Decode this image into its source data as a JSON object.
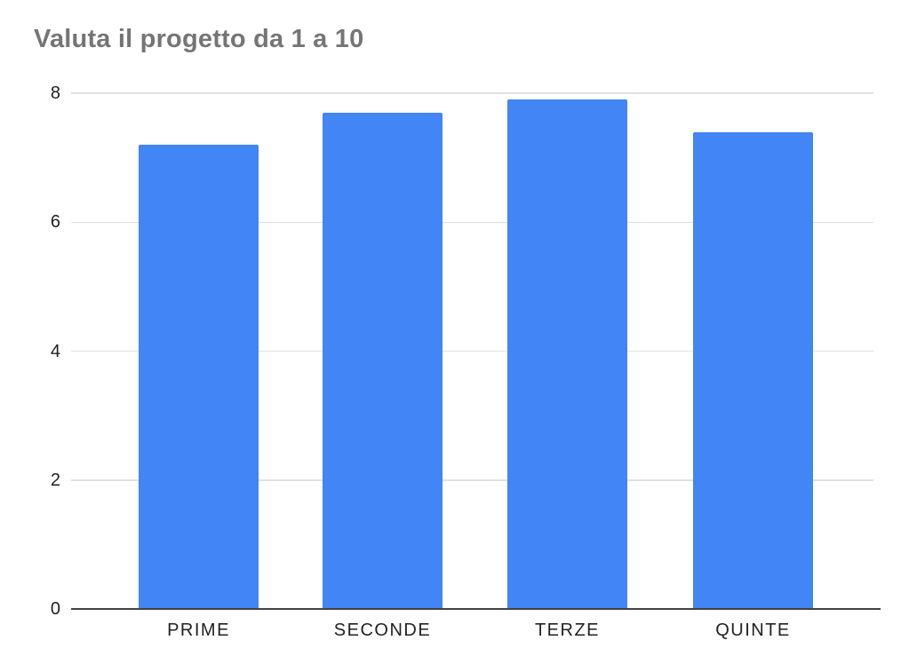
{
  "chart_data": {
    "type": "bar",
    "title": "Valuta il progetto da 1 a 10",
    "categories": [
      "PRIME",
      "SECONDE",
      "TERZE",
      "QUINTE"
    ],
    "values": [
      7.2,
      7.7,
      7.9,
      7.4
    ],
    "xlabel": "",
    "ylabel": "",
    "ylim": [
      0,
      8
    ],
    "yticks": [
      0,
      2,
      4,
      6,
      8
    ],
    "grid": true,
    "legend": "none",
    "colors": {
      "bar": "#4285f4",
      "title": "#757575",
      "axis_labels": "#222222",
      "gridline": "#e0e0e0",
      "baseline": "#424242",
      "background": "#ffffff"
    }
  }
}
